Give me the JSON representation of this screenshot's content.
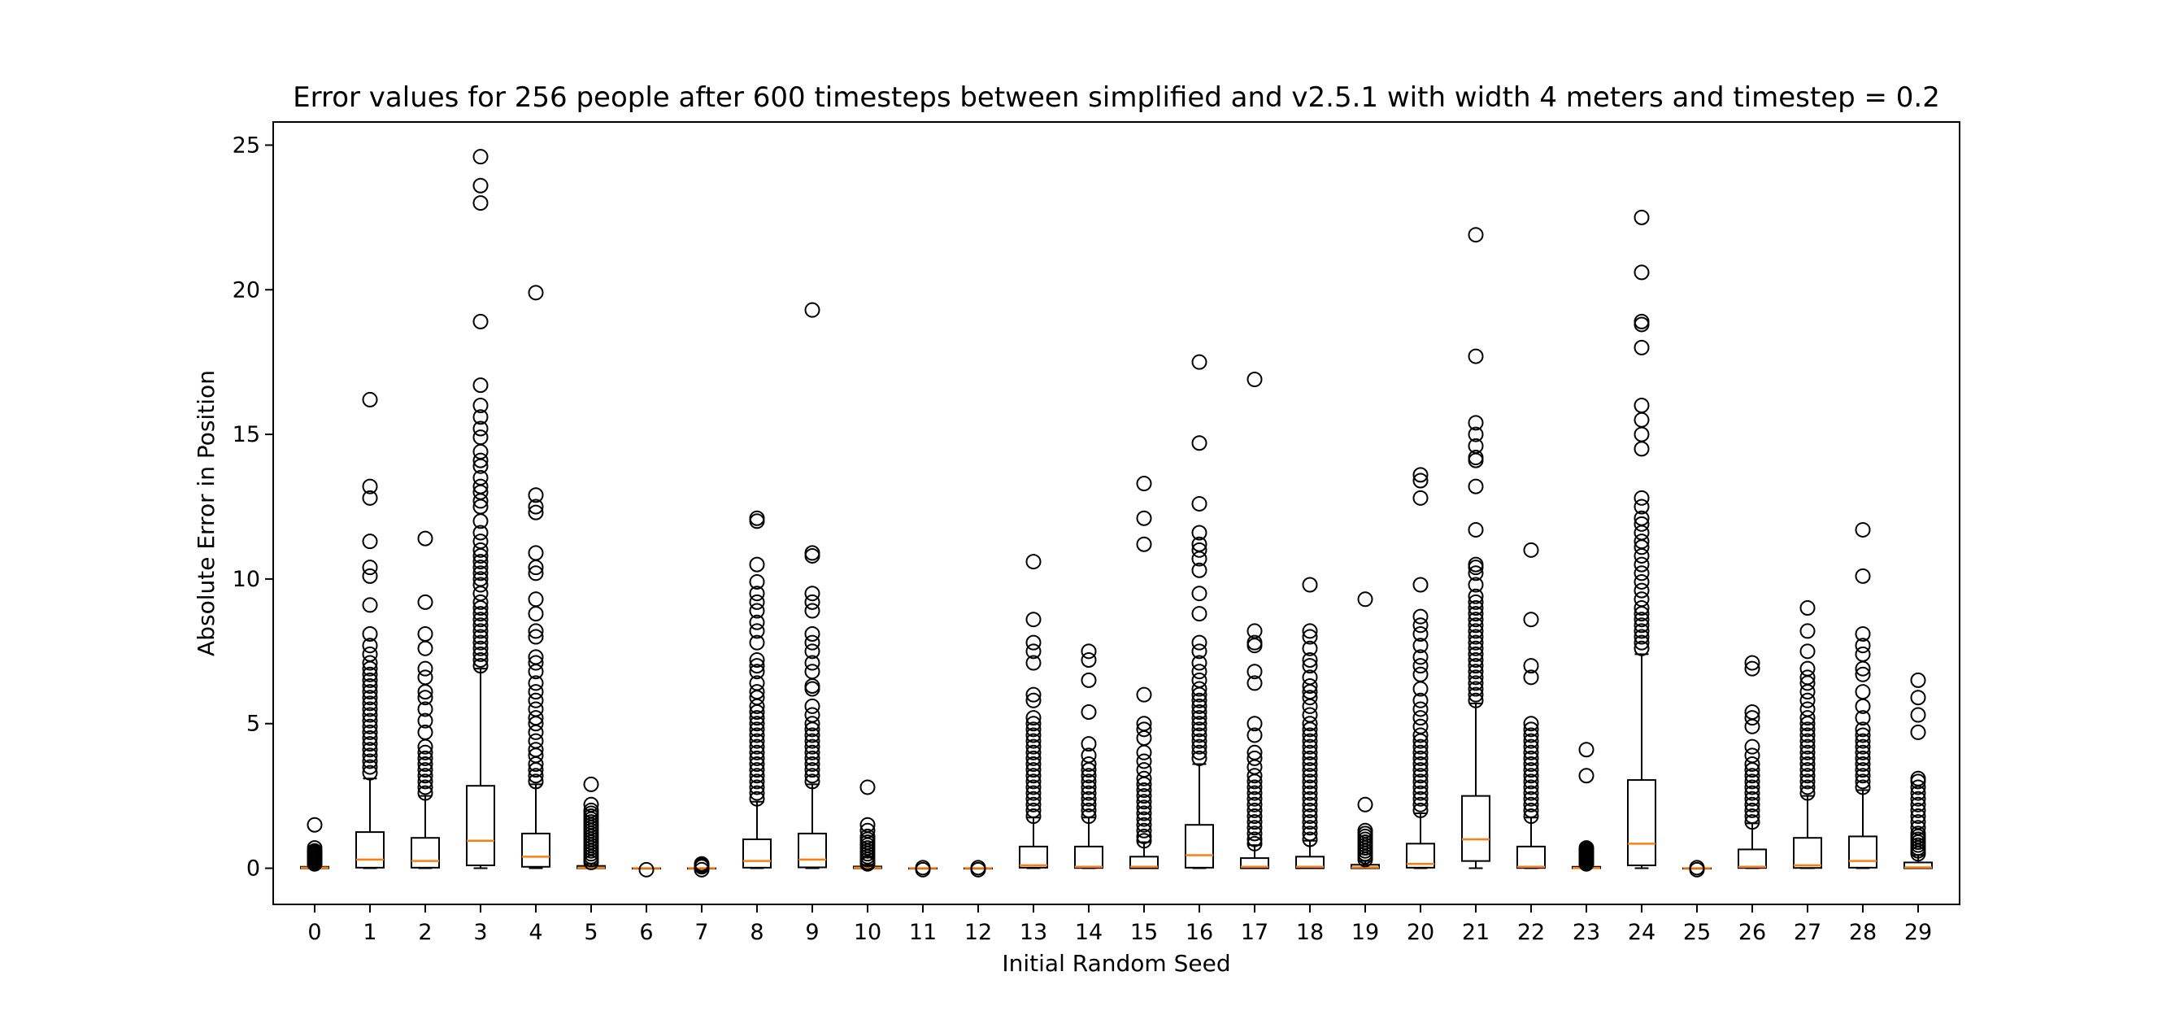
{
  "chart_data": {
    "type": "boxplot",
    "title": "Error values for 256 people after 600 timesteps between simplified and v2.5.1 with width 4 meters and timestep = 0.2",
    "xlabel": "Initial Random Seed",
    "ylabel": "Absolute Error in Position",
    "ylim": [
      -1.25,
      25.8
    ],
    "yticks": [
      0,
      5,
      10,
      15,
      20,
      25
    ],
    "grid": false,
    "colors": {
      "box": "#000000",
      "median": "#ff7f0e",
      "background": "#ffffff"
    },
    "categories": [
      "0",
      "1",
      "2",
      "3",
      "4",
      "5",
      "6",
      "7",
      "8",
      "9",
      "10",
      "11",
      "12",
      "13",
      "14",
      "15",
      "16",
      "17",
      "18",
      "19",
      "20",
      "21",
      "22",
      "23",
      "24",
      "25",
      "26",
      "27",
      "28",
      "29"
    ],
    "boxes": [
      {
        "whislo": 0,
        "q1": 0,
        "med": 0.02,
        "q3": 0.05,
        "whishi": 0.1,
        "fliers": [
          0.15,
          0.2,
          0.25,
          0.3,
          0.35,
          0.4,
          0.45,
          0.5,
          0.55,
          0.6,
          0.7,
          1.5
        ]
      },
      {
        "whislo": 0,
        "q1": 0.02,
        "med": 0.3,
        "q3": 1.25,
        "whishi": 3.1,
        "fliers": [
          3.3,
          3.5,
          3.7,
          3.9,
          4.1,
          4.3,
          4.5,
          4.7,
          4.9,
          5.1,
          5.3,
          5.5,
          5.7,
          5.9,
          6.1,
          6.3,
          6.5,
          6.7,
          6.9,
          7.1,
          7.4,
          7.7,
          8.1,
          9.1,
          10.1,
          10.4,
          11.3,
          12.8,
          13.2,
          16.2
        ]
      },
      {
        "whislo": 0,
        "q1": 0.02,
        "med": 0.25,
        "q3": 1.05,
        "whishi": 2.5,
        "fliers": [
          2.6,
          2.8,
          3.0,
          3.2,
          3.4,
          3.6,
          3.8,
          4.0,
          4.2,
          4.7,
          5.1,
          5.5,
          5.9,
          6.1,
          6.6,
          6.9,
          7.6,
          8.1,
          9.2,
          11.4
        ]
      },
      {
        "whislo": 0,
        "q1": 0.1,
        "med": 0.95,
        "q3": 2.85,
        "whishi": 6.9,
        "fliers": [
          7.0,
          7.2,
          7.4,
          7.6,
          7.8,
          8.0,
          8.2,
          8.4,
          8.6,
          8.8,
          9.0,
          9.2,
          9.5,
          9.8,
          10.0,
          10.2,
          10.4,
          10.6,
          10.8,
          11.0,
          11.3,
          11.6,
          12.0,
          12.5,
          12.7,
          13.0,
          13.2,
          13.5,
          13.9,
          14.1,
          14.4,
          14.9,
          15.2,
          15.6,
          16.0,
          16.7,
          18.9,
          23.0,
          23.6,
          24.6
        ]
      },
      {
        "whislo": 0,
        "q1": 0.05,
        "med": 0.4,
        "q3": 1.2,
        "whishi": 2.9,
        "fliers": [
          3.0,
          3.2,
          3.4,
          3.6,
          3.9,
          4.1,
          4.4,
          4.7,
          5.0,
          5.2,
          5.5,
          5.8,
          6.1,
          6.4,
          6.8,
          7.1,
          7.3,
          8.0,
          8.2,
          8.8,
          9.3,
          10.2,
          10.4,
          10.9,
          12.3,
          12.5,
          12.9,
          19.9
        ]
      },
      {
        "whislo": 0,
        "q1": 0,
        "med": 0.02,
        "q3": 0.08,
        "whishi": 0.15,
        "fliers": [
          0.2,
          0.3,
          0.4,
          0.5,
          0.6,
          0.7,
          0.8,
          0.9,
          1.0,
          1.1,
          1.2,
          1.3,
          1.4,
          1.5,
          1.6,
          1.7,
          1.8,
          1.9,
          2.0,
          2.2,
          2.9
        ]
      },
      {
        "whislo": 0,
        "q1": 0,
        "med": 0,
        "q3": 0,
        "whishi": 0,
        "fliers": [
          -0.05
        ]
      },
      {
        "whislo": 0,
        "q1": 0,
        "med": 0,
        "q3": 0,
        "whishi": 0,
        "fliers": [
          -0.05,
          0.05,
          0.1,
          0.15
        ]
      },
      {
        "whislo": 0,
        "q1": 0.02,
        "med": 0.25,
        "q3": 1.0,
        "whishi": 2.3,
        "fliers": [
          2.4,
          2.6,
          2.8,
          3.0,
          3.2,
          3.4,
          3.6,
          3.8,
          4.0,
          4.2,
          4.4,
          4.6,
          4.8,
          5.0,
          5.2,
          5.4,
          5.6,
          5.9,
          6.1,
          6.4,
          6.8,
          7.0,
          7.2,
          7.8,
          8.2,
          8.5,
          8.9,
          9.2,
          9.5,
          9.9,
          10.5,
          12.0,
          12.1
        ]
      },
      {
        "whislo": 0,
        "q1": 0.03,
        "med": 0.3,
        "q3": 1.2,
        "whishi": 2.9,
        "fliers": [
          3.0,
          3.2,
          3.4,
          3.6,
          3.8,
          4.0,
          4.2,
          4.4,
          4.6,
          4.8,
          5.0,
          5.3,
          5.6,
          6.2,
          6.3,
          6.8,
          7.1,
          7.5,
          7.8,
          8.1,
          8.9,
          9.2,
          9.5,
          10.8,
          10.9,
          19.3
        ]
      },
      {
        "whislo": 0,
        "q1": 0,
        "med": 0.02,
        "q3": 0.06,
        "whishi": 0.12,
        "fliers": [
          0.15,
          0.2,
          0.3,
          0.4,
          0.5,
          0.6,
          0.7,
          0.8,
          0.9,
          1.0,
          1.1,
          1.3,
          1.5,
          2.8
        ]
      },
      {
        "whislo": 0,
        "q1": 0,
        "med": 0,
        "q3": 0,
        "whishi": 0,
        "fliers": [
          -0.05,
          0.02
        ]
      },
      {
        "whislo": 0,
        "q1": 0,
        "med": 0,
        "q3": 0,
        "whishi": 0,
        "fliers": [
          -0.05,
          0.02
        ]
      },
      {
        "whislo": 0,
        "q1": 0.02,
        "med": 0.1,
        "q3": 0.75,
        "whishi": 1.75,
        "fliers": [
          1.8,
          2.0,
          2.2,
          2.4,
          2.6,
          2.8,
          3.0,
          3.2,
          3.4,
          3.6,
          3.8,
          4.0,
          4.2,
          4.4,
          4.6,
          4.8,
          5.0,
          5.2,
          5.8,
          6.0,
          7.1,
          7.5,
          7.8,
          8.6,
          10.6
        ]
      },
      {
        "whislo": 0,
        "q1": 0.01,
        "med": 0.05,
        "q3": 0.75,
        "whishi": 1.75,
        "fliers": [
          1.8,
          2.0,
          2.2,
          2.4,
          2.6,
          2.8,
          3.0,
          3.2,
          3.4,
          3.6,
          3.9,
          4.3,
          5.4,
          6.5,
          7.2,
          7.5
        ]
      },
      {
        "whislo": 0,
        "q1": 0,
        "med": 0.05,
        "q3": 0.4,
        "whishi": 0.9,
        "fliers": [
          0.95,
          1.1,
          1.3,
          1.5,
          1.7,
          1.9,
          2.1,
          2.3,
          2.5,
          2.7,
          2.9,
          3.1,
          3.4,
          3.7,
          4.0,
          4.5,
          4.8,
          5.0,
          6.0,
          11.2,
          12.1,
          13.3
        ]
      },
      {
        "whislo": 0,
        "q1": 0.02,
        "med": 0.45,
        "q3": 1.5,
        "whishi": 3.6,
        "fliers": [
          3.8,
          4.0,
          4.2,
          4.4,
          4.6,
          4.8,
          5.0,
          5.2,
          5.4,
          5.6,
          5.8,
          6.0,
          6.2,
          6.5,
          6.8,
          7.1,
          7.5,
          7.8,
          8.8,
          9.5,
          10.3,
          10.7,
          11.0,
          11.2,
          11.6,
          12.6,
          14.7,
          17.5
        ]
      },
      {
        "whislo": 0,
        "q1": 0,
        "med": 0.05,
        "q3": 0.35,
        "whishi": 0.8,
        "fliers": [
          0.85,
          1.0,
          1.2,
          1.4,
          1.6,
          1.8,
          2.0,
          2.2,
          2.4,
          2.6,
          2.8,
          3.0,
          3.2,
          3.5,
          3.8,
          4.0,
          4.6,
          5.0,
          6.4,
          6.8,
          7.7,
          7.8,
          8.2,
          16.9
        ]
      },
      {
        "whislo": 0,
        "q1": 0,
        "med": 0.05,
        "q3": 0.4,
        "whishi": 0.95,
        "fliers": [
          1.0,
          1.2,
          1.4,
          1.6,
          1.8,
          2.0,
          2.2,
          2.4,
          2.6,
          2.8,
          3.0,
          3.2,
          3.4,
          3.6,
          3.8,
          4.0,
          4.2,
          4.4,
          4.6,
          4.8,
          5.0,
          5.3,
          5.6,
          5.9,
          6.1,
          6.3,
          6.6,
          7.0,
          7.2,
          7.6,
          8.0,
          8.2,
          9.8
        ]
      },
      {
        "whislo": 0,
        "q1": 0,
        "med": 0.03,
        "q3": 0.12,
        "whishi": 0.25,
        "fliers": [
          0.3,
          0.4,
          0.5,
          0.6,
          0.7,
          0.8,
          0.9,
          1.0,
          1.1,
          1.2,
          1.3,
          2.2,
          9.3
        ]
      },
      {
        "whislo": 0,
        "q1": 0.02,
        "med": 0.15,
        "q3": 0.85,
        "whishi": 1.9,
        "fliers": [
          2.0,
          2.2,
          2.4,
          2.6,
          2.8,
          3.0,
          3.2,
          3.4,
          3.6,
          3.8,
          4.0,
          4.2,
          4.4,
          4.6,
          4.9,
          5.2,
          5.5,
          5.8,
          6.2,
          6.7,
          7.0,
          7.3,
          7.7,
          8.1,
          8.4,
          8.7,
          9.8,
          12.8,
          13.4,
          13.6
        ]
      },
      {
        "whislo": 0,
        "q1": 0.25,
        "med": 1.0,
        "q3": 2.5,
        "whishi": 5.7,
        "fliers": [
          5.8,
          6.0,
          6.2,
          6.4,
          6.6,
          6.8,
          7.0,
          7.2,
          7.4,
          7.6,
          7.8,
          8.0,
          8.2,
          8.4,
          8.6,
          8.8,
          9.0,
          9.2,
          9.4,
          9.8,
          10.2,
          10.4,
          10.5,
          11.7,
          13.2,
          14.1,
          14.2,
          14.6,
          15.0,
          15.4,
          17.7,
          21.9
        ]
      },
      {
        "whislo": 0,
        "q1": 0.01,
        "med": 0.05,
        "q3": 0.75,
        "whishi": 1.75,
        "fliers": [
          1.8,
          2.0,
          2.2,
          2.4,
          2.6,
          2.8,
          3.0,
          3.2,
          3.4,
          3.6,
          3.8,
          4.0,
          4.2,
          4.4,
          4.6,
          4.8,
          5.0,
          6.6,
          7.0,
          8.6,
          11.0
        ]
      },
      {
        "whislo": 0,
        "q1": 0,
        "med": 0.01,
        "q3": 0.05,
        "whishi": 0.1,
        "fliers": [
          0.15,
          0.2,
          0.25,
          0.3,
          0.35,
          0.4,
          0.45,
          0.5,
          0.55,
          0.6,
          0.65,
          0.7,
          3.2,
          4.1
        ]
      },
      {
        "whislo": 0,
        "q1": 0.1,
        "med": 0.85,
        "q3": 3.05,
        "whishi": 7.4,
        "fliers": [
          7.6,
          7.8,
          8.0,
          8.2,
          8.4,
          8.6,
          8.8,
          9.0,
          9.3,
          9.6,
          9.9,
          10.2,
          10.5,
          10.8,
          11.1,
          11.3,
          11.6,
          11.9,
          12.1,
          12.5,
          12.8,
          14.5,
          15.0,
          15.5,
          16.0,
          18.0,
          18.8,
          18.9,
          20.6,
          22.5
        ]
      },
      {
        "whislo": 0,
        "q1": 0,
        "med": 0,
        "q3": 0,
        "whishi": 0,
        "fliers": [
          -0.05,
          0.02
        ]
      },
      {
        "whislo": 0,
        "q1": 0.01,
        "med": 0.05,
        "q3": 0.65,
        "whishi": 1.55,
        "fliers": [
          1.6,
          1.8,
          2.0,
          2.2,
          2.4,
          2.6,
          2.8,
          3.0,
          3.2,
          3.4,
          3.6,
          3.9,
          4.2,
          4.9,
          5.2,
          5.4,
          6.9,
          7.1
        ]
      },
      {
        "whislo": 0,
        "q1": 0.01,
        "med": 0.1,
        "q3": 1.05,
        "whishi": 2.5,
        "fliers": [
          2.6,
          2.8,
          3.0,
          3.2,
          3.4,
          3.6,
          3.8,
          4.0,
          4.2,
          4.4,
          4.6,
          4.8,
          5.0,
          5.2,
          5.5,
          5.8,
          6.1,
          6.4,
          6.6,
          6.9,
          7.5,
          8.2,
          9.0
        ]
      },
      {
        "whislo": 0,
        "q1": 0.02,
        "med": 0.25,
        "q3": 1.1,
        "whishi": 2.7,
        "fliers": [
          2.8,
          3.0,
          3.2,
          3.4,
          3.6,
          3.8,
          4.0,
          4.2,
          4.4,
          4.6,
          4.8,
          5.2,
          5.6,
          6.1,
          6.7,
          6.9,
          7.4,
          7.7,
          8.1,
          10.1,
          11.7
        ]
      },
      {
        "whislo": 0,
        "q1": 0,
        "med": 0.03,
        "q3": 0.2,
        "whishi": 0.45,
        "fliers": [
          0.5,
          0.6,
          0.7,
          0.8,
          0.9,
          1.0,
          1.1,
          1.2,
          1.4,
          1.6,
          1.8,
          2.0,
          2.2,
          2.4,
          2.6,
          2.8,
          3.0,
          3.1,
          4.7,
          5.3,
          5.9,
          6.5
        ]
      }
    ]
  }
}
